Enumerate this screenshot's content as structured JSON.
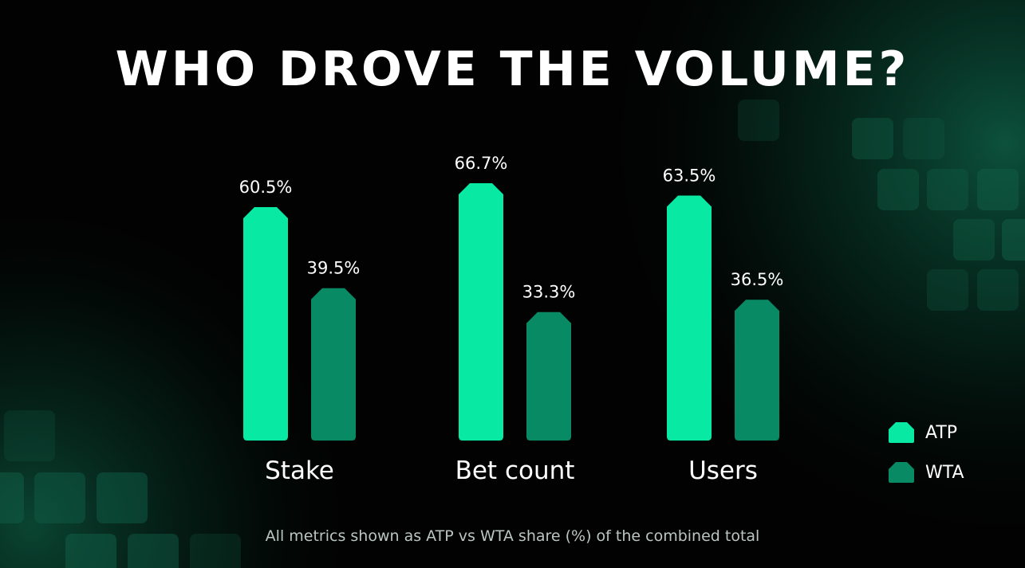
{
  "chart_data": {
    "type": "bar",
    "title": "WHO DROVE THE VOLUME?",
    "categories": [
      "Stake",
      "Bet count",
      "Users"
    ],
    "series": [
      {
        "name": "ATP",
        "values": [
          60.5,
          66.7,
          63.5
        ],
        "labels": [
          "60.5%",
          "66.7%",
          "63.5%"
        ],
        "color": "#08eaa4"
      },
      {
        "name": "WTA",
        "values": [
          39.5,
          33.3,
          36.5
        ],
        "labels": [
          "39.5%",
          "33.3%",
          "36.5%"
        ],
        "color": "#088a64"
      }
    ],
    "ylim": [
      0,
      66.7
    ],
    "grid": false,
    "legend": "bottom-right",
    "footnote": "All metrics shown as ATP vs WTA share (%) of the combined total"
  }
}
